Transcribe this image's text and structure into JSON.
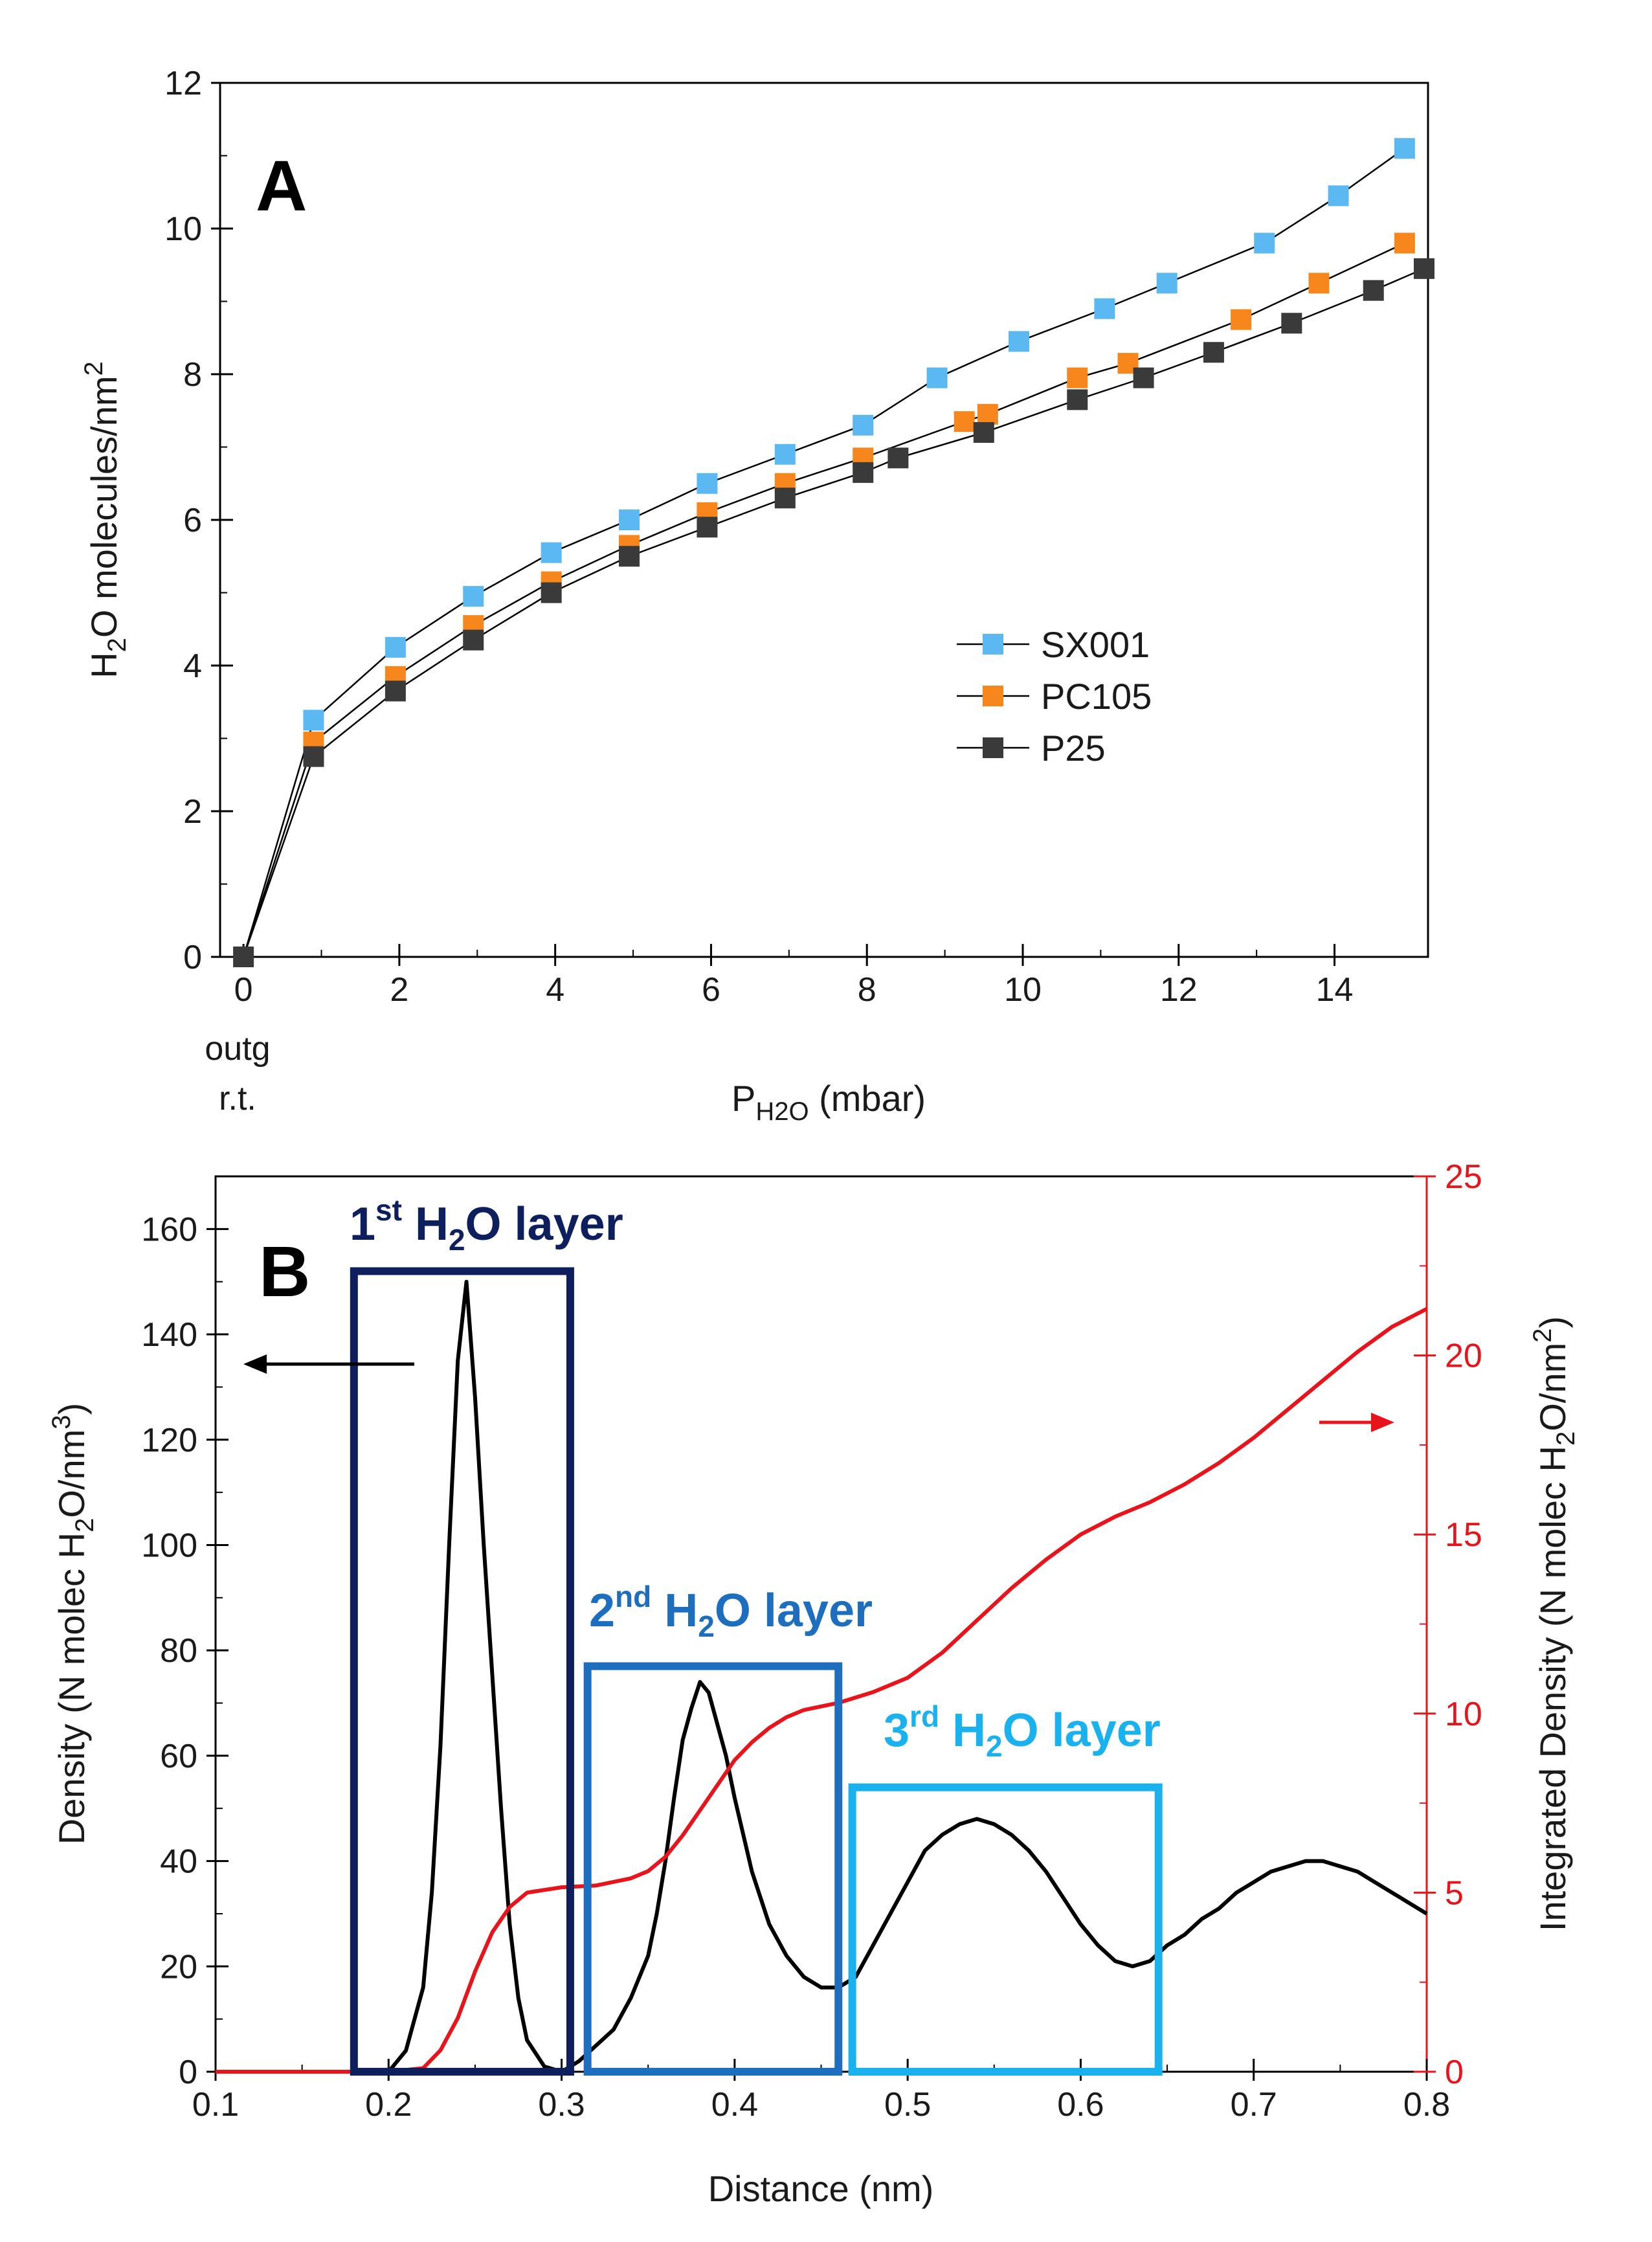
{
  "chart_data": [
    {
      "type": "line",
      "panel_label": "A",
      "title": "",
      "xlabel": {
        "base": "P",
        "sub": "H2O",
        "rest": " (mbar)"
      },
      "ylabel": {
        "a": "H",
        "sub": "2",
        "b": "O molecules/nm",
        "sup": "2"
      },
      "x_extra_labels": [
        "outg",
        "r.t."
      ],
      "xlim": [
        -0.3,
        15.2
      ],
      "ylim": [
        0,
        12
      ],
      "xticks": [
        0,
        2,
        4,
        6,
        8,
        10,
        12,
        14
      ],
      "yticks": [
        0,
        2,
        4,
        6,
        8,
        10,
        12
      ],
      "legend_position": "center-right",
      "series": [
        {
          "name": "SX001",
          "color": "#5bb8f0",
          "x": [
            0,
            0.9,
            1.95,
            2.95,
            3.95,
            4.95,
            5.95,
            6.95,
            7.95,
            8.9,
            9.95,
            11.05,
            11.85,
            13.1,
            14.05,
            14.9
          ],
          "values": [
            0,
            3.25,
            4.25,
            4.95,
            5.55,
            6.0,
            6.5,
            6.9,
            7.3,
            7.95,
            8.45,
            8.9,
            9.25,
            9.8,
            10.45,
            11.1
          ]
        },
        {
          "name": "PC105",
          "color": "#f7861d",
          "x": [
            0,
            0.9,
            1.95,
            2.95,
            3.95,
            4.95,
            5.95,
            6.95,
            7.95,
            9.25,
            9.55,
            10.7,
            11.35,
            12.8,
            13.8,
            14.9
          ],
          "values": [
            0,
            2.95,
            3.85,
            4.55,
            5.15,
            5.65,
            6.1,
            6.5,
            6.85,
            7.35,
            7.45,
            7.95,
            8.15,
            8.75,
            9.25,
            9.8
          ]
        },
        {
          "name": "P25",
          "color": "#3a3a3a",
          "x": [
            0,
            0.9,
            1.95,
            2.95,
            3.95,
            4.95,
            5.95,
            6.95,
            7.95,
            8.4,
            9.5,
            10.7,
            11.55,
            12.45,
            13.45,
            14.5,
            15.15
          ],
          "values": [
            0,
            2.75,
            3.65,
            4.35,
            5.0,
            5.5,
            5.9,
            6.3,
            6.65,
            6.85,
            7.2,
            7.65,
            7.95,
            8.3,
            8.7,
            9.15,
            9.45
          ]
        }
      ]
    },
    {
      "type": "line",
      "panel_label": "B",
      "xlabel": "Distance (nm)",
      "ylabel_left": {
        "a": "Density (N molec H",
        "sub": "2",
        "b": "O/nm",
        "sup": "3",
        "c": ")"
      },
      "ylabel_right": {
        "a": "Integrated Density (N molec H",
        "sub": "2",
        "b": "O/nm",
        "sup": "2",
        "c": ")"
      },
      "xlim": [
        0.1,
        0.8
      ],
      "ylim_left": [
        0,
        170
      ],
      "ylim_right": [
        0,
        25
      ],
      "xticks": [
        0.1,
        0.2,
        0.3,
        0.4,
        0.5,
        0.6,
        0.7,
        0.8
      ],
      "yticks_left": [
        0,
        20,
        40,
        60,
        80,
        100,
        120,
        140,
        160
      ],
      "yticks_right": [
        0,
        5,
        10,
        15,
        20,
        25
      ],
      "right_axis_color": "#e8141b",
      "series": [
        {
          "name": "Density",
          "axis": "left",
          "color": "#000000",
          "x": [
            0.1,
            0.19,
            0.2,
            0.21,
            0.22,
            0.225,
            0.23,
            0.235,
            0.24,
            0.245,
            0.25,
            0.255,
            0.26,
            0.265,
            0.27,
            0.275,
            0.28,
            0.29,
            0.3,
            0.31,
            0.32,
            0.33,
            0.34,
            0.35,
            0.355,
            0.36,
            0.365,
            0.37,
            0.375,
            0.38,
            0.385,
            0.39,
            0.395,
            0.4,
            0.41,
            0.42,
            0.43,
            0.44,
            0.45,
            0.46,
            0.47,
            0.48,
            0.49,
            0.5,
            0.51,
            0.52,
            0.53,
            0.54,
            0.55,
            0.56,
            0.57,
            0.58,
            0.59,
            0.6,
            0.61,
            0.62,
            0.63,
            0.64,
            0.65,
            0.66,
            0.67,
            0.68,
            0.69,
            0.7,
            0.71,
            0.72,
            0.73,
            0.74,
            0.75,
            0.76,
            0.77,
            0.78,
            0.79,
            0.8
          ],
          "values": [
            0,
            0,
            0,
            4,
            16,
            34,
            62,
            100,
            135,
            150,
            128,
            100,
            75,
            50,
            28,
            14,
            6,
            1,
            0,
            2,
            5,
            8,
            14,
            22,
            30,
            40,
            52,
            63,
            69,
            74,
            72,
            66,
            60,
            52,
            38,
            28,
            22,
            18,
            16,
            16,
            18,
            24,
            30,
            36,
            42,
            45,
            47,
            48,
            47,
            45,
            42,
            38,
            33,
            28,
            24,
            21,
            20,
            21,
            24,
            26,
            29,
            31,
            34,
            36,
            38,
            39,
            40,
            40,
            39,
            38,
            36,
            34,
            32,
            30
          ]
        },
        {
          "name": "Integrated Density",
          "axis": "right",
          "color": "#e8141b",
          "x": [
            0.1,
            0.2,
            0.22,
            0.23,
            0.24,
            0.25,
            0.26,
            0.27,
            0.28,
            0.3,
            0.32,
            0.34,
            0.35,
            0.36,
            0.37,
            0.38,
            0.39,
            0.4,
            0.41,
            0.42,
            0.43,
            0.44,
            0.46,
            0.48,
            0.5,
            0.52,
            0.54,
            0.56,
            0.58,
            0.6,
            0.62,
            0.64,
            0.66,
            0.68,
            0.7,
            0.72,
            0.74,
            0.76,
            0.78,
            0.8
          ],
          "values": [
            0,
            0,
            0.1,
            0.6,
            1.5,
            2.8,
            3.9,
            4.6,
            5.0,
            5.15,
            5.2,
            5.4,
            5.6,
            6.0,
            6.6,
            7.3,
            8.0,
            8.7,
            9.2,
            9.6,
            9.9,
            10.1,
            10.3,
            10.6,
            11.0,
            11.7,
            12.6,
            13.5,
            14.3,
            15.0,
            15.5,
            15.9,
            16.4,
            17.0,
            17.7,
            18.5,
            19.3,
            20.1,
            20.8,
            21.3
          ]
        }
      ],
      "layers": [
        {
          "sup": "st",
          "num": "1",
          "text": " H",
          "sub": "2",
          "rest": "O layer",
          "color": "#0e1f5e",
          "x_range": [
            0.18,
            0.305
          ],
          "top": 152
        },
        {
          "sup": "nd",
          "num": "2",
          "text": " H",
          "sub": "2",
          "rest": "O layer",
          "color": "#1d6ebf",
          "x_range": [
            0.315,
            0.46
          ],
          "top": 77
        },
        {
          "sup": "rd",
          "num": "3",
          "text": " H",
          "sub": "2",
          "rest": "O layer",
          "color": "#19b2ee",
          "x_range": [
            0.468,
            0.645
          ],
          "top": 54
        }
      ],
      "arrows": [
        {
          "axis": "left",
          "direction": "left",
          "color": "#000000"
        },
        {
          "axis": "right",
          "direction": "right",
          "color": "#e8141b"
        }
      ]
    }
  ]
}
